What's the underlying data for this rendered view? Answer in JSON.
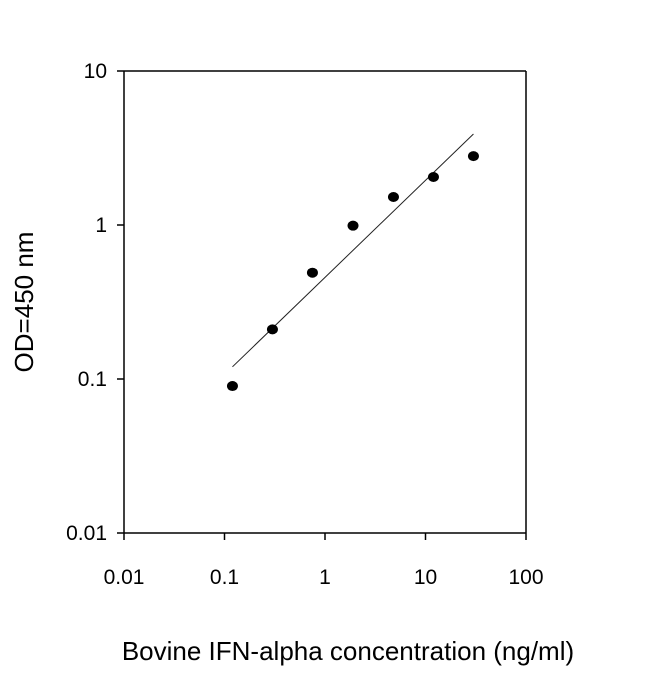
{
  "chart_data": {
    "type": "scatter",
    "title": "",
    "xlabel": "Bovine IFN-alpha concentration (ng/ml)",
    "ylabel": "OD=450 nm",
    "xscale": "log",
    "yscale": "log",
    "xlim": [
      0.01,
      100
    ],
    "ylim": [
      0.01,
      10
    ],
    "xtick_labels": [
      "0.01",
      "0.1",
      "1",
      "10",
      "100"
    ],
    "ytick_labels": [
      "0.01",
      "0.1",
      "1",
      "10"
    ],
    "grid": false,
    "legend": "none",
    "series": [
      {
        "type": "scatter",
        "x": [
          0.12,
          0.3,
          0.75,
          1.9,
          4.8,
          12,
          30
        ],
        "y": [
          0.09,
          0.21,
          0.49,
          0.99,
          1.52,
          2.05,
          2.8
        ]
      },
      {
        "type": "line",
        "x": [
          0.12,
          30
        ],
        "y": [
          0.12,
          3.9
        ]
      }
    ]
  }
}
